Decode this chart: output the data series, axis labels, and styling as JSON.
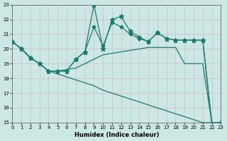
{
  "xlabel": "Humidex (Indice chaleur)",
  "xlim": [
    0,
    23
  ],
  "ylim": [
    15,
    23
  ],
  "yticks": [
    15,
    16,
    17,
    18,
    19,
    20,
    21,
    22,
    23
  ],
  "xticks": [
    0,
    1,
    2,
    3,
    4,
    5,
    6,
    7,
    8,
    9,
    10,
    11,
    12,
    13,
    14,
    15,
    16,
    17,
    18,
    19,
    20,
    21,
    22,
    23
  ],
  "bg_color": "#cce8e4",
  "grid_color": "#b8d8d4",
  "line_color": "#1a7a6e",
  "line1_x": [
    0,
    1,
    2,
    3,
    4,
    5,
    6,
    7,
    8,
    9,
    10,
    11,
    12,
    13,
    14,
    15,
    16,
    17,
    18,
    19,
    20,
    21,
    22,
    23
  ],
  "line1_y": [
    20.5,
    20.0,
    19.4,
    19.0,
    18.5,
    18.5,
    18.5,
    19.3,
    19.8,
    23.0,
    20.0,
    22.0,
    22.2,
    21.2,
    20.8,
    20.5,
    21.1,
    20.7,
    20.6,
    20.6,
    20.6,
    20.6,
    14.9,
    15.0
  ],
  "line2_x": [
    0,
    1,
    2,
    3,
    4,
    5,
    6,
    7,
    8,
    9,
    10,
    11,
    12,
    13,
    14,
    15,
    16,
    17,
    18,
    19,
    20,
    21,
    22,
    23
  ],
  "line2_y": [
    20.5,
    20.0,
    19.4,
    19.0,
    18.5,
    18.5,
    18.5,
    19.3,
    19.8,
    21.5,
    20.2,
    21.8,
    21.5,
    21.0,
    20.7,
    20.5,
    21.1,
    20.7,
    20.6,
    20.6,
    20.6,
    20.6,
    14.9,
    14.9
  ],
  "line3_x": [
    0,
    1,
    2,
    3,
    4,
    5,
    6,
    7,
    8,
    9,
    10,
    11,
    12,
    13,
    14,
    15,
    16,
    17,
    18,
    19,
    20,
    21,
    22,
    23
  ],
  "line3_y": [
    20.5,
    20.0,
    19.4,
    19.0,
    18.5,
    18.5,
    18.6,
    18.7,
    19.0,
    19.3,
    19.6,
    19.7,
    19.8,
    19.9,
    20.0,
    20.1,
    20.1,
    20.1,
    20.1,
    19.0,
    19.0,
    19.0,
    15.0,
    15.0
  ],
  "line4_x": [
    0,
    1,
    2,
    3,
    4,
    5,
    6,
    7,
    8,
    9,
    10,
    11,
    12,
    13,
    14,
    15,
    16,
    17,
    18,
    19,
    20,
    21,
    22,
    23
  ],
  "line4_y": [
    20.5,
    20.0,
    19.4,
    19.0,
    18.5,
    18.3,
    18.1,
    17.9,
    17.7,
    17.5,
    17.2,
    17.0,
    16.8,
    16.6,
    16.4,
    16.2,
    16.0,
    15.8,
    15.6,
    15.4,
    15.2,
    15.0,
    15.0,
    15.0
  ]
}
